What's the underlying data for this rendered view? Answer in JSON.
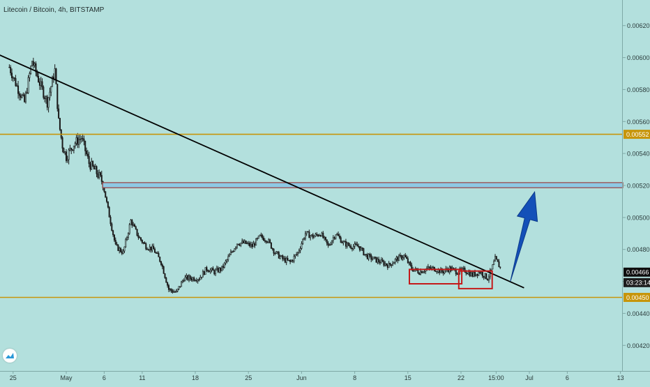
{
  "chart_data": {
    "type": "candlestick",
    "title": "Litecoin / Bitcoin, 4h, BITSTAMP",
    "ylim": [
      0.00404,
      0.00636
    ],
    "yticks": [
      0.0042,
      0.0044,
      0.0046,
      0.0048,
      0.005,
      0.0052,
      0.0054,
      0.0056,
      0.0058,
      0.006,
      0.0062
    ],
    "ytick_labels": [
      "0.00420",
      "0.00440",
      "0.00460",
      "0.00480",
      "0.00500",
      "0.00520",
      "0.00540",
      "0.00560",
      "0.00580",
      "0.00600",
      "0.00620"
    ],
    "x_labels": [
      "25",
      "May",
      "6",
      "11",
      "18",
      "25",
      "Jun",
      "8",
      "15",
      "22",
      "15:00",
      "Jul",
      "6",
      "13"
    ],
    "x_label_days": [
      -6,
      1,
      6,
      11,
      18,
      25,
      32,
      39,
      46,
      53,
      57.625,
      62,
      67,
      74
    ],
    "price_path": [
      [
        -6.5,
        0.00594
      ],
      [
        -5.5,
        0.00582
      ],
      [
        -4.5,
        0.00572
      ],
      [
        -3.5,
        0.00598
      ],
      [
        -2.5,
        0.00584
      ],
      [
        -1.5,
        0.00572
      ],
      [
        -0.5,
        0.00592
      ],
      [
        0.0,
        0.0056
      ],
      [
        0.5,
        0.00545
      ],
      [
        1.0,
        0.00538
      ],
      [
        2.0,
        0.00546
      ],
      [
        3.0,
        0.0055
      ],
      [
        4.0,
        0.00534
      ],
      [
        5.0,
        0.00528
      ],
      [
        5.8,
        0.00522
      ],
      [
        6.5,
        0.00505
      ],
      [
        7.5,
        0.00482
      ],
      [
        8.5,
        0.00478
      ],
      [
        9.5,
        0.00498
      ],
      [
        10.5,
        0.00488
      ],
      [
        11.5,
        0.00482
      ],
      [
        12.5,
        0.0048
      ],
      [
        13.5,
        0.00472
      ],
      [
        14.5,
        0.00455
      ],
      [
        15.5,
        0.00453
      ],
      [
        16.5,
        0.00462
      ],
      [
        17.5,
        0.00462
      ],
      [
        18.5,
        0.00462
      ],
      [
        19.5,
        0.00468
      ],
      [
        20.5,
        0.00466
      ],
      [
        21.5,
        0.00468
      ],
      [
        22.5,
        0.00476
      ],
      [
        23.5,
        0.00484
      ],
      [
        24.5,
        0.00484
      ],
      [
        25.5,
        0.00482
      ],
      [
        26.5,
        0.00488
      ],
      [
        27.5,
        0.00486
      ],
      [
        28.5,
        0.00478
      ],
      [
        29.5,
        0.00474
      ],
      [
        30.5,
        0.00472
      ],
      [
        31.5,
        0.00478
      ],
      [
        32.5,
        0.0049
      ],
      [
        33.5,
        0.00488
      ],
      [
        34.5,
        0.0049
      ],
      [
        35.5,
        0.00482
      ],
      [
        36.5,
        0.0049
      ],
      [
        37.5,
        0.00484
      ],
      [
        38.5,
        0.00482
      ],
      [
        39.5,
        0.00482
      ],
      [
        40.5,
        0.00476
      ],
      [
        41.5,
        0.00474
      ],
      [
        42.5,
        0.00472
      ],
      [
        43.5,
        0.0047
      ],
      [
        44.5,
        0.00474
      ],
      [
        45.5,
        0.00476
      ],
      [
        46.5,
        0.00468
      ],
      [
        47.5,
        0.00466
      ],
      [
        48.5,
        0.00468
      ],
      [
        49.5,
        0.00468
      ],
      [
        50.5,
        0.00466
      ],
      [
        51.5,
        0.00468
      ],
      [
        52.5,
        0.00466
      ],
      [
        53.5,
        0.00467
      ],
      [
        54.5,
        0.00464
      ],
      [
        55.5,
        0.00466
      ],
      [
        56.5,
        0.00462
      ],
      [
        57.0,
        0.00467
      ],
      [
        57.5,
        0.00474
      ],
      [
        58.0,
        0.0047
      ],
      [
        58.3,
        0.00467
      ]
    ],
    "horizontal_levels": [
      {
        "price": 0.00552,
        "label": "0.00552",
        "color": "#c7950a"
      },
      {
        "price": 0.0045,
        "label": "0.00450",
        "color": "#c7950a"
      }
    ],
    "resistance_zone": {
      "top": 0.005218,
      "bottom": 0.005186,
      "start_day": 5.8,
      "fill": "#8ec9e4",
      "border": "#9b3e3e"
    },
    "trendline": {
      "start": [
        -13.2,
        0.00613
      ],
      "end": [
        61.3,
        0.00456
      ],
      "color": "#000000"
    },
    "consolidation_boxes": [
      {
        "start_day": 46.2,
        "end_day": 53.1,
        "top": 0.004675,
        "bottom": 0.004585
      },
      {
        "start_day": 52.7,
        "end_day": 57.1,
        "top": 0.004665,
        "bottom": 0.004555
      }
    ],
    "projection_arrow": {
      "from": [
        59.5,
        0.0046
      ],
      "to": [
        62.7,
        0.00516
      ],
      "color": "#1450b8"
    },
    "last_price": {
      "label": "0.00466",
      "bg": "#0d0d0d",
      "text_color": "#ffffff"
    },
    "countdown": {
      "label": "03:23:14",
      "bg": "#1c1c1c",
      "text_color": "#ffffff"
    },
    "colors": {
      "background": "#b3e0dd",
      "candle": "#1b1b1b",
      "axis_text": "#2b3b3b",
      "level": "#c7950a",
      "box": "#c41a1a"
    },
    "grid": false
  }
}
